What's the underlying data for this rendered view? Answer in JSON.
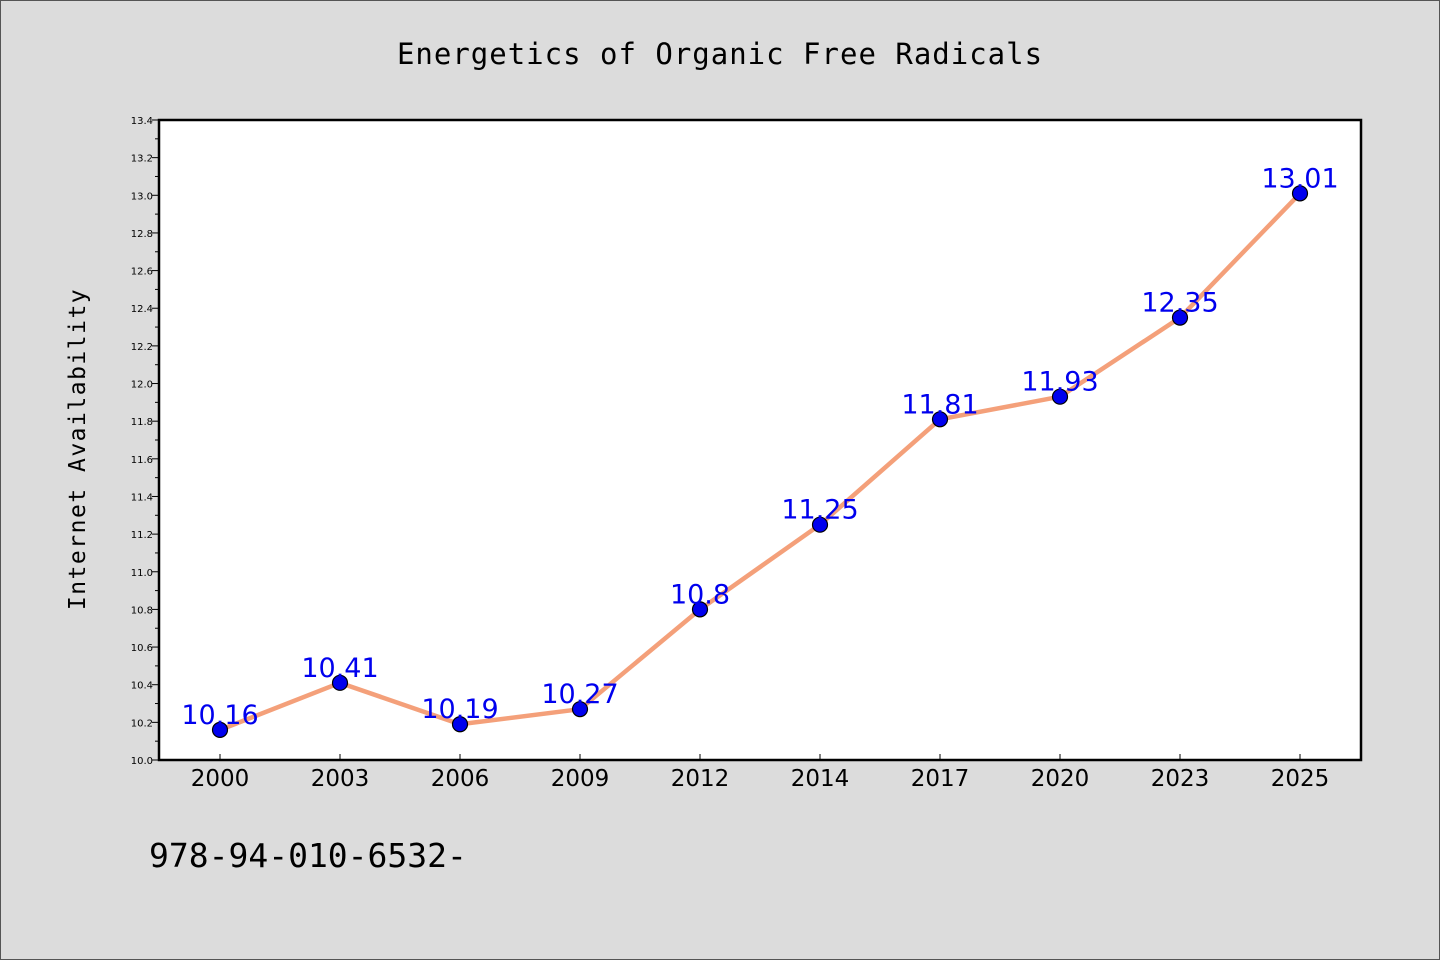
{
  "chart_data": {
    "type": "line",
    "title": "Energetics of Organic Free Radicals",
    "xlabel": "",
    "ylabel": "Internet Availability",
    "categories": [
      "2000",
      "2003",
      "2006",
      "2009",
      "2012",
      "2014",
      "2017",
      "2020",
      "2023",
      "2025"
    ],
    "series": [
      {
        "values": [
          10.16,
          10.41,
          10.19,
          10.27,
          10.8,
          11.25,
          11.81,
          11.93,
          12.35,
          13.01
        ],
        "labels": [
          "10.16",
          "10.41",
          "10.19",
          "10.27",
          "10.8",
          "11.25",
          "11.81",
          "11.93",
          "12.35",
          "13.01"
        ],
        "line_color": "#f4a07a",
        "marker_color": "#0000ee",
        "label_color": "#0000ee"
      }
    ],
    "ylim": [
      10.0,
      13.4
    ],
    "y_ticks": [
      "10.0",
      "10.2",
      "10.4",
      "10.6",
      "10.8",
      "11.0",
      "11.2",
      "11.4",
      "11.6",
      "11.8",
      "12.0",
      "12.2",
      "12.4",
      "12.6",
      "12.8",
      "13.0",
      "13.2",
      "13.4"
    ],
    "grid": false,
    "legend": "none"
  },
  "footer_text": "978-94-010-6532-"
}
